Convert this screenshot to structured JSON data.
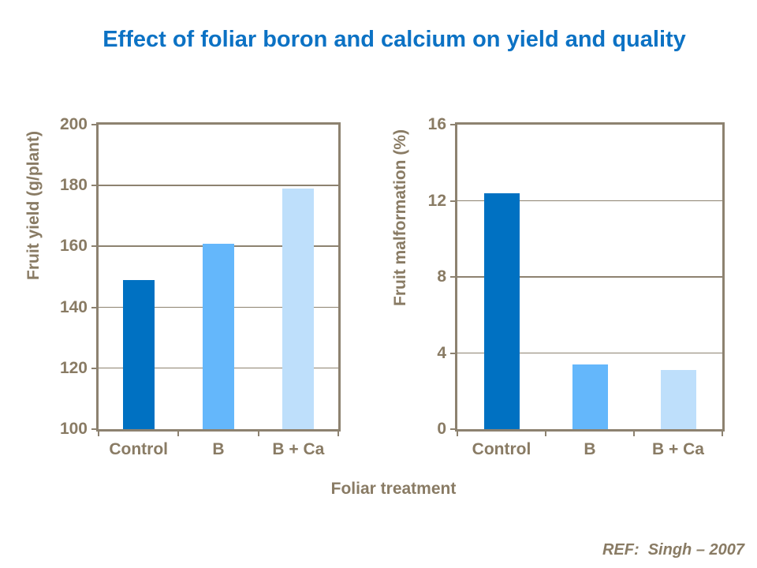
{
  "title": {
    "text": "Effect of foliar boron and calcium on yield and quality",
    "color": "#0c72c4"
  },
  "footer": {
    "ref_label": "REF:  Singh – 2007",
    "color": "#897b64"
  },
  "shared_axis": {
    "xlabel": "Foliar treatment"
  },
  "palette": {
    "bar_control": "#0071c2",
    "bar_b": "#64b7fb",
    "bar_b_ca": "#bedffb",
    "axis_line": "#8d8270",
    "axis_text": "#897b64",
    "title_blue": "#0c72c4",
    "background": "#ffffff"
  },
  "chart_data": [
    {
      "type": "bar",
      "title": "",
      "categories": [
        "Control",
        "B",
        "B + Ca"
      ],
      "values": [
        149,
        161,
        179
      ],
      "xlabel": "Foliar treatment",
      "ylabel": "Fruit yield (g/plant)",
      "ylim": [
        100,
        200
      ],
      "yticks": [
        200,
        180,
        160,
        140,
        120,
        100
      ],
      "grid": true,
      "legend": false,
      "bar_colors": [
        "#0071c2",
        "#64b7fb",
        "#bedffb"
      ]
    },
    {
      "type": "bar",
      "title": "",
      "categories": [
        "Control",
        "B",
        "B + Ca"
      ],
      "values": [
        12.4,
        3.4,
        3.1
      ],
      "xlabel": "",
      "ylabel": "Fruit malformation (%)",
      "ylim": [
        0,
        16
      ],
      "yticks": [
        16,
        12,
        8,
        4,
        0
      ],
      "grid": true,
      "legend": false,
      "bar_colors": [
        "#0071c2",
        "#64b7fb",
        "#bedffb"
      ]
    }
  ]
}
